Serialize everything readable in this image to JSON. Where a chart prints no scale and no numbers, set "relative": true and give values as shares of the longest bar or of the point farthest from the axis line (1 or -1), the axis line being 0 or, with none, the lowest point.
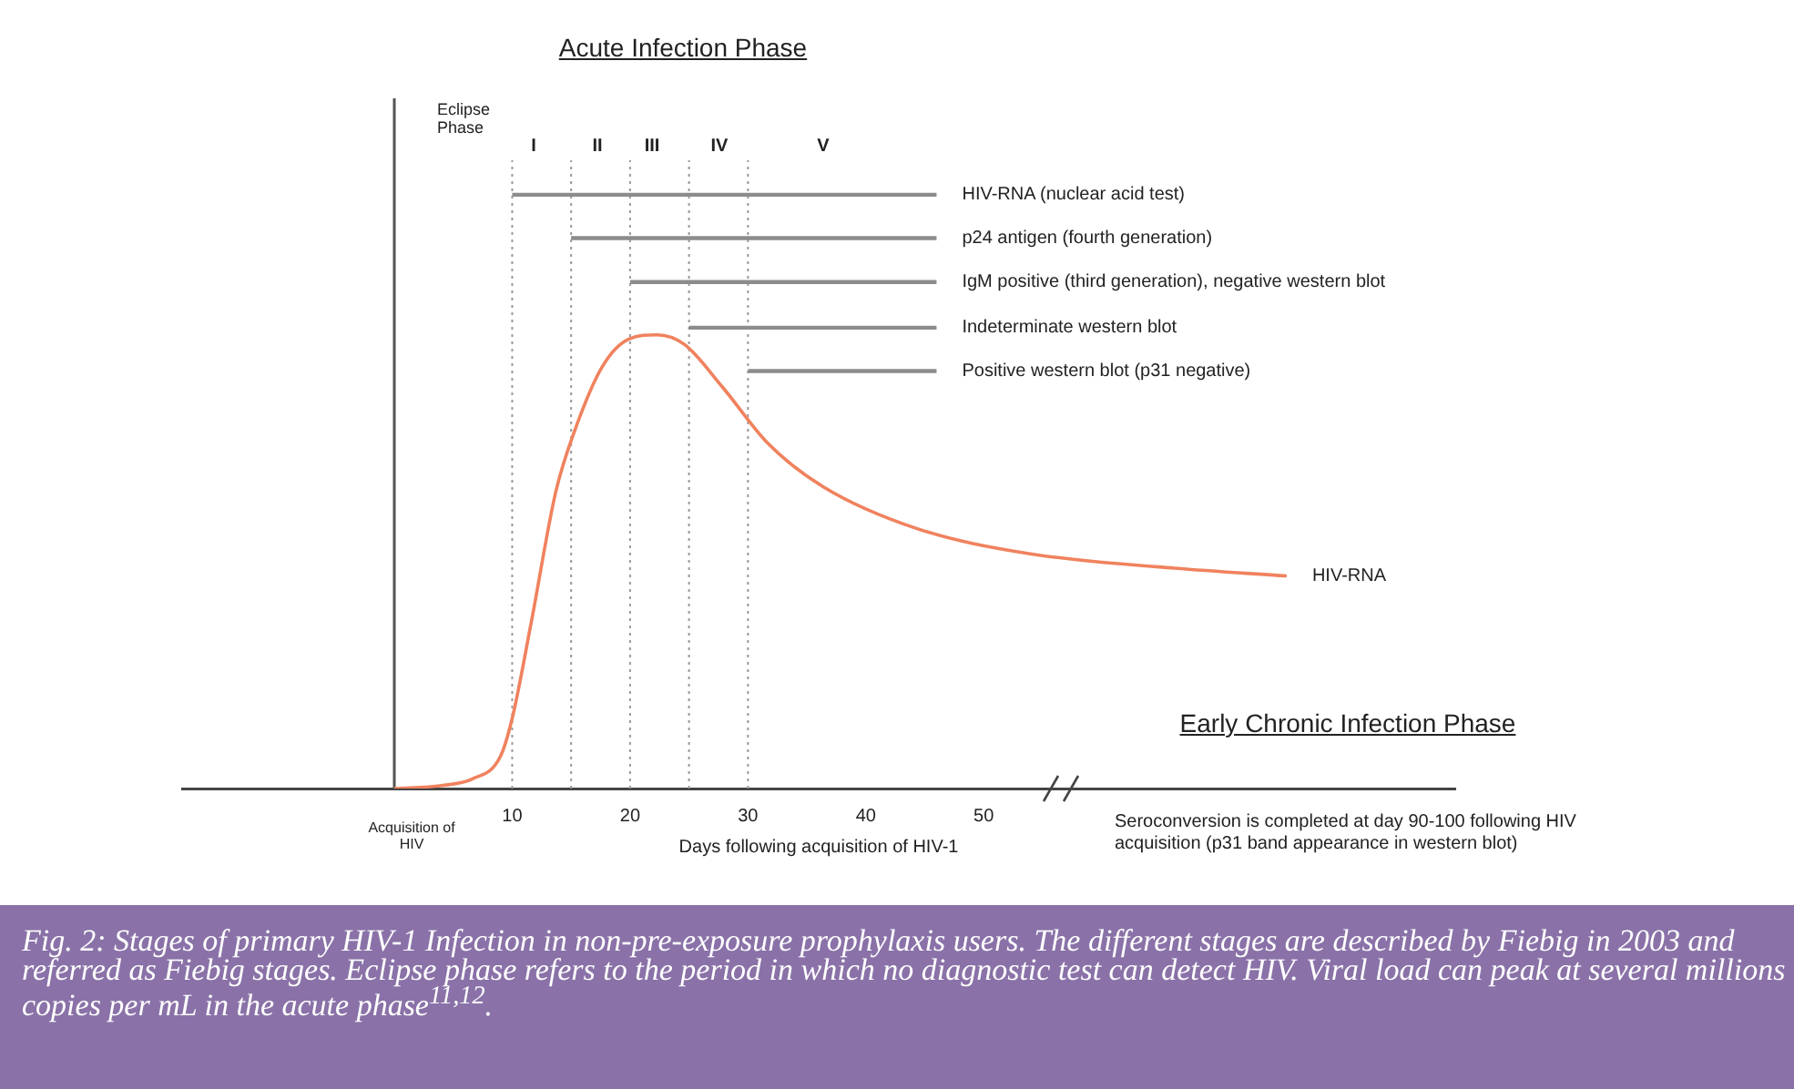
{
  "chart_data": {
    "type": "line",
    "relative": true,
    "title": "Acute Infection Phase",
    "xlabel": "Days following acquisition of HIV-1",
    "xlim": [
      -18,
      90
    ],
    "xticks": [
      10,
      20,
      30,
      40,
      50
    ],
    "series": [
      {
        "name": "HIV-RNA",
        "color": "#f0825e",
        "x": [
          0,
          4,
          6.6,
          9,
          10,
          11.6,
          13.7,
          15.2,
          17.6,
          19.9,
          22.3,
          24.6,
          27.8,
          31.7,
          36.4,
          44.3,
          53.7,
          66.2,
          75.7
        ],
        "values": [
          0,
          0.005,
          0.016,
          0.054,
          0.118,
          0.278,
          0.5,
          0.597,
          0.709,
          0.757,
          0.764,
          0.748,
          0.677,
          0.581,
          0.508,
          0.438,
          0.396,
          0.371,
          0.358
        ]
      },
      {
        "name": "HIV-RNA (nuclear acid test)",
        "color": "#8c8c8c",
        "x": [
          10,
          46
        ],
        "values": [
          1,
          1
        ]
      },
      {
        "name": "p24 antigen (fourth generation)",
        "color": "#8c8c8c",
        "x": [
          15,
          46
        ],
        "values": [
          0.927,
          0.927
        ]
      },
      {
        "name": "IgM positive (third generation), negative western blot",
        "color": "#8c8c8c",
        "x": [
          20,
          46
        ],
        "values": [
          0.853,
          0.853
        ]
      },
      {
        "name": "Indeterminate western blot",
        "color": "#8c8c8c",
        "x": [
          25,
          46
        ],
        "values": [
          0.776,
          0.776
        ]
      },
      {
        "name": "Positive western blot (p31 negative)",
        "color": "#8c8c8c",
        "x": [
          30,
          46
        ],
        "values": [
          0.703,
          0.703
        ]
      }
    ],
    "ref_lines": [
      {
        "axis": "x",
        "value": 0,
        "line_style": "solid",
        "color": "#555555"
      },
      {
        "axis": "x",
        "value": 10,
        "line_style": "dotted",
        "color": "#999999"
      },
      {
        "axis": "x",
        "value": 15,
        "line_style": "dotted",
        "color": "#999999"
      },
      {
        "axis": "x",
        "value": 20,
        "line_style": "dotted",
        "color": "#999999"
      },
      {
        "axis": "x",
        "value": 25,
        "line_style": "dotted",
        "color": "#999999"
      },
      {
        "axis": "x",
        "value": 30,
        "line_style": "dotted",
        "color": "#999999"
      }
    ],
    "annotations": [
      "Acquisition of HIV",
      "Eclipse Phase",
      "I",
      "II",
      "III",
      "IV",
      "V",
      "Early Chronic Infection Phase",
      "Seroconversion is completed at day 90-100 following HIV acquisition (p31 band appearance in western blot)",
      "Fig. 2:  Stages of primary HIV-1 Infection in non-pre-exposure prophylaxis users.  The different stages are described by Fiebig in 2003 and referred as Fiebig stages.  Eclipse phase refers to the period in which no diagnostic test can detect HIV.  Viral load can peak at several millions copies per mL in the acute phase$^{11,12}$."
    ],
    "grid": false,
    "legend": false,
    "marker": "none",
    "line_style": "solid"
  }
}
